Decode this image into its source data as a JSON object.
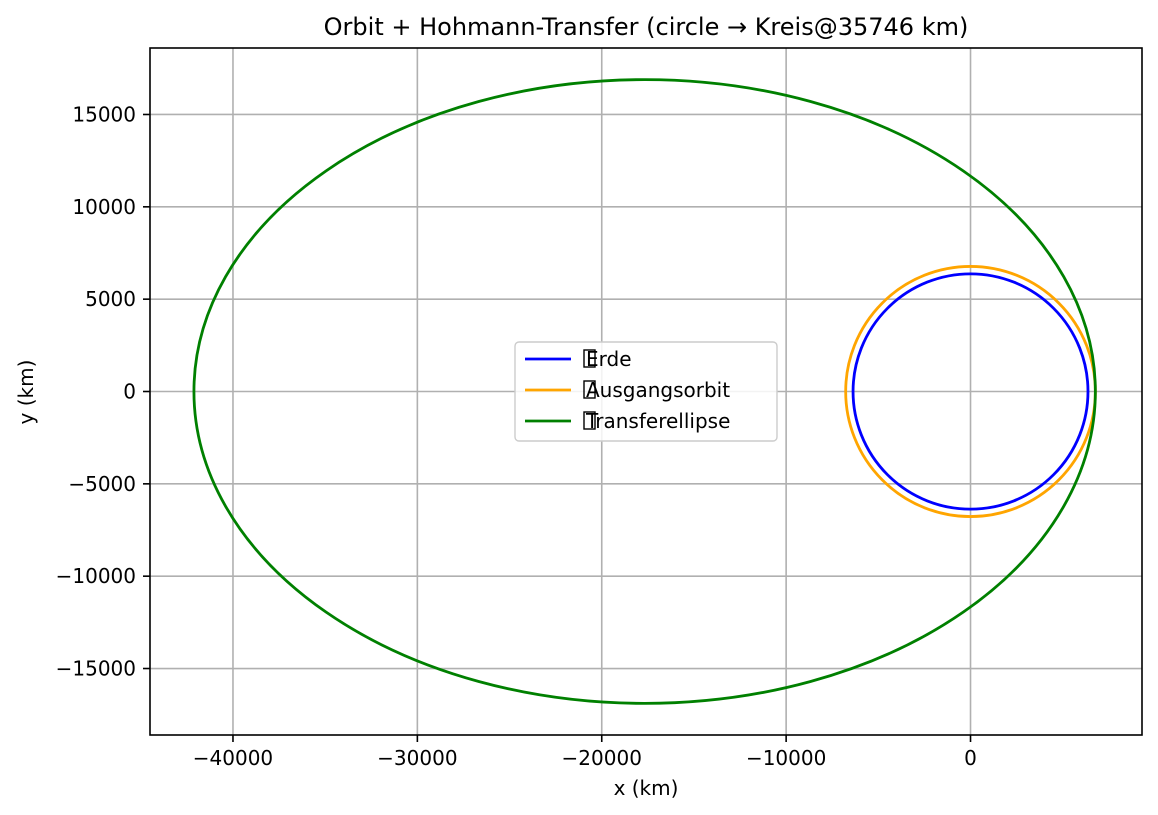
{
  "chart_data": {
    "type": "line",
    "title": "Orbit + Hohmann-Transfer (circle → Kreis@35746 km)",
    "xlabel": "x (km)",
    "ylabel": "y (km)",
    "xlim": [
      -44500,
      9300
    ],
    "ylim": [
      -18600,
      18600
    ],
    "xticks": [
      -40000,
      -30000,
      -20000,
      -10000,
      0
    ],
    "yticks": [
      -15000,
      -10000,
      -5000,
      0,
      5000,
      10000,
      15000
    ],
    "grid": true,
    "legend_position": "center",
    "series": [
      {
        "name": " Erde",
        "shape": "circle",
        "center": [
          0,
          0
        ],
        "radius": 6371,
        "color": "#0000ff"
      },
      {
        "name": " Ausgangsorbit",
        "shape": "circle",
        "center": [
          0,
          0
        ],
        "radius": 6771,
        "color": "#ffa500"
      },
      {
        "name": " Transferellipse",
        "shape": "ellipse",
        "periapsis": 6771,
        "apoapsis": 42117,
        "color": "#008000"
      }
    ]
  }
}
